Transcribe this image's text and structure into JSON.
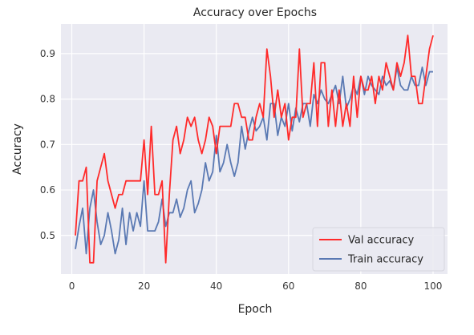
{
  "chart_data": {
    "type": "line",
    "title": "Accuracy over Epochs",
    "xlabel": "Epoch",
    "ylabel": "Accuracy",
    "xlim": [
      -3,
      104
    ],
    "ylim": [
      0.415,
      0.965
    ],
    "xticks": [
      0,
      20,
      40,
      60,
      80,
      100
    ],
    "xtick_labels": [
      "0",
      "20",
      "40",
      "60",
      "80",
      "100"
    ],
    "yticks": [
      0.5,
      0.6,
      0.7,
      0.8,
      0.9
    ],
    "ytick_labels": [
      "0.5",
      "0.6",
      "0.7",
      "0.8",
      "0.9"
    ],
    "grid": true,
    "legend_position": "lower-right",
    "background": "#eaeaf2",
    "x": [
      1,
      2,
      3,
      4,
      5,
      6,
      7,
      8,
      9,
      10,
      11,
      12,
      13,
      14,
      15,
      16,
      17,
      18,
      19,
      20,
      21,
      22,
      23,
      24,
      25,
      26,
      27,
      28,
      29,
      30,
      31,
      32,
      33,
      34,
      35,
      36,
      37,
      38,
      39,
      40,
      41,
      42,
      43,
      44,
      45,
      46,
      47,
      48,
      49,
      50,
      51,
      52,
      53,
      54,
      55,
      56,
      57,
      58,
      59,
      60,
      61,
      62,
      63,
      64,
      65,
      66,
      67,
      68,
      69,
      70,
      71,
      72,
      73,
      74,
      75,
      76,
      77,
      78,
      79,
      80,
      81,
      82,
      83,
      84,
      85,
      86,
      87,
      88,
      89,
      90,
      91,
      92,
      93,
      94,
      95,
      96,
      97,
      98,
      99,
      100
    ],
    "series": [
      {
        "name": "Val accuracy",
        "color": "#ff2a2a",
        "values": [
          0.5,
          0.62,
          0.62,
          0.65,
          0.44,
          0.44,
          0.62,
          0.65,
          0.68,
          0.62,
          0.59,
          0.56,
          0.59,
          0.59,
          0.62,
          0.62,
          0.62,
          0.62,
          0.62,
          0.71,
          0.59,
          0.74,
          0.59,
          0.59,
          0.62,
          0.44,
          0.59,
          0.71,
          0.74,
          0.68,
          0.71,
          0.76,
          0.74,
          0.76,
          0.71,
          0.68,
          0.71,
          0.76,
          0.74,
          0.68,
          0.74,
          0.74,
          0.74,
          0.74,
          0.79,
          0.79,
          0.76,
          0.76,
          0.71,
          0.71,
          0.76,
          0.79,
          0.76,
          0.91,
          0.85,
          0.76,
          0.82,
          0.76,
          0.79,
          0.71,
          0.76,
          0.76,
          0.91,
          0.76,
          0.79,
          0.79,
          0.88,
          0.74,
          0.88,
          0.88,
          0.74,
          0.82,
          0.74,
          0.82,
          0.74,
          0.79,
          0.74,
          0.85,
          0.76,
          0.85,
          0.82,
          0.82,
          0.85,
          0.79,
          0.85,
          0.82,
          0.88,
          0.85,
          0.82,
          0.88,
          0.85,
          0.88,
          0.94,
          0.85,
          0.85,
          0.79,
          0.79,
          0.85,
          0.91,
          0.94
        ]
      },
      {
        "name": "Train accuracy",
        "color": "#5a79b3",
        "values": [
          0.47,
          0.52,
          0.56,
          0.46,
          0.56,
          0.6,
          0.53,
          0.48,
          0.5,
          0.55,
          0.51,
          0.46,
          0.49,
          0.56,
          0.48,
          0.55,
          0.51,
          0.55,
          0.52,
          0.62,
          0.51,
          0.51,
          0.51,
          0.53,
          0.58,
          0.52,
          0.55,
          0.55,
          0.58,
          0.54,
          0.56,
          0.6,
          0.62,
          0.55,
          0.57,
          0.6,
          0.66,
          0.62,
          0.64,
          0.72,
          0.64,
          0.66,
          0.7,
          0.66,
          0.63,
          0.66,
          0.74,
          0.69,
          0.73,
          0.76,
          0.73,
          0.74,
          0.76,
          0.71,
          0.79,
          0.79,
          0.72,
          0.76,
          0.74,
          0.79,
          0.73,
          0.78,
          0.75,
          0.79,
          0.79,
          0.74,
          0.81,
          0.79,
          0.82,
          0.8,
          0.79,
          0.81,
          0.83,
          0.79,
          0.85,
          0.78,
          0.8,
          0.83,
          0.81,
          0.85,
          0.81,
          0.85,
          0.83,
          0.82,
          0.81,
          0.85,
          0.83,
          0.84,
          0.82,
          0.87,
          0.83,
          0.82,
          0.82,
          0.85,
          0.83,
          0.83,
          0.87,
          0.83,
          0.86,
          0.86
        ]
      }
    ]
  }
}
